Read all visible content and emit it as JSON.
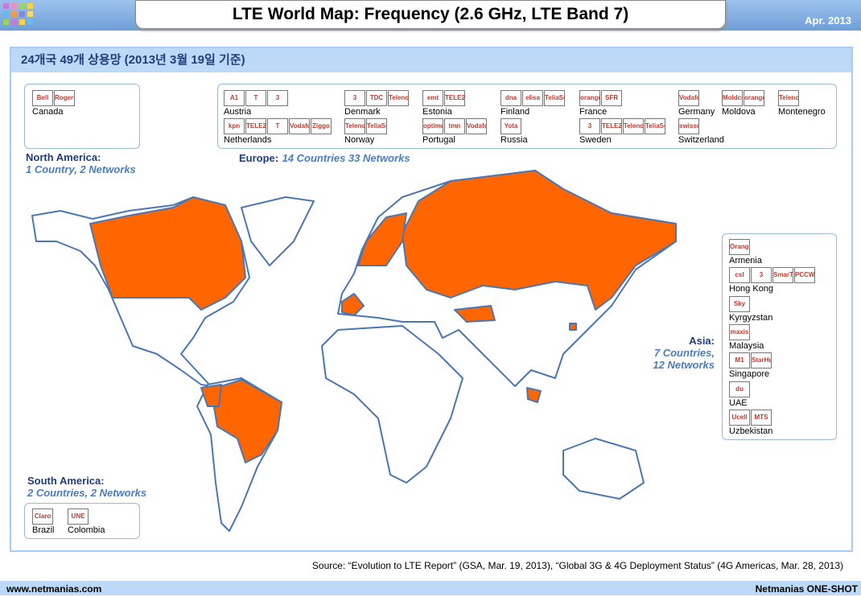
{
  "header": {
    "title": "LTE World Map: Frequency (2.6 GHz, LTE Band 7)",
    "date": "Apr. 2013"
  },
  "panel": {
    "heading": "24개국 49개 상용망 (2013년 3월 19일 기준)"
  },
  "regions": {
    "north_america": {
      "name": "North America:",
      "summary": "1 Country, 2 Networks",
      "countries": [
        {
          "name": "Canada",
          "logos": [
            "Bell",
            "Rogers"
          ]
        }
      ]
    },
    "europe": {
      "name": "Europe:",
      "summary": "14 Countries 33 Networks",
      "countries": [
        {
          "name": "Austria",
          "logos": [
            "A1",
            "T",
            "3"
          ]
        },
        {
          "name": "Denmark",
          "logos": [
            "3",
            "TDC",
            "Telenor"
          ]
        },
        {
          "name": "Estonia",
          "logos": [
            "emt",
            "TELE2"
          ]
        },
        {
          "name": "Finland",
          "logos": [
            "dna",
            "elisa",
            "TeliaSonera"
          ]
        },
        {
          "name": "France",
          "logos": [
            "orange",
            "SFR"
          ]
        },
        {
          "name": "Germany",
          "logos": [
            "Vodafone"
          ]
        },
        {
          "name": "Moldova",
          "logos": [
            "Moldcell",
            "orange"
          ]
        },
        {
          "name": "Montenegro",
          "logos": [
            "Telenor"
          ]
        },
        {
          "name": "Netherlands",
          "logos": [
            "kpn",
            "TELE2",
            "T",
            "Vodafone",
            "Ziggo"
          ]
        },
        {
          "name": "Norway",
          "logos": [
            "Telenor",
            "TeliaSonera"
          ]
        },
        {
          "name": "Portugal",
          "logos": [
            "optimus",
            "tmn",
            "Vodafone"
          ]
        },
        {
          "name": "Russia",
          "logos": [
            "Yota"
          ]
        },
        {
          "name": "Sweden",
          "logos": [
            "3",
            "TELE2",
            "Telenor",
            "TeliaSonera"
          ]
        },
        {
          "name": "Switzerland",
          "logos": [
            "swisscom"
          ]
        }
      ]
    },
    "asia": {
      "name": "Asia:",
      "summary": "7 Countries, 12 Networks",
      "countries": [
        {
          "name": "Armenia",
          "logos": [
            "Orange"
          ]
        },
        {
          "name": "Hong Kong",
          "logos": [
            "csl",
            "3",
            "SmarTone",
            "PCCW"
          ]
        },
        {
          "name": "Kyrgyzstan",
          "logos": [
            "Sky Mobile"
          ]
        },
        {
          "name": "Malaysia",
          "logos": [
            "maxis"
          ]
        },
        {
          "name": "Singapore",
          "logos": [
            "M1",
            "StarHub"
          ]
        },
        {
          "name": "UAE",
          "logos": [
            "du"
          ]
        },
        {
          "name": "Uzbekistan",
          "logos": [
            "Ucell",
            "MTS"
          ]
        }
      ]
    },
    "south_america": {
      "name": "South America:",
      "summary": "2 Countries, 2 Networks",
      "countries": [
        {
          "name": "Brazil",
          "logos": [
            "Claro"
          ]
        },
        {
          "name": "Colombia",
          "logos": [
            "UNE"
          ]
        }
      ]
    }
  },
  "source": "Source: “Evolution to LTE Report” (GSA, Mar. 19, 2013), “Global 3G & 4G Deployment Status” (4G Americas, Mar. 28, 2013)",
  "footer": {
    "left": "www.netmanias.com",
    "right": "Netmanias ONE-SHOT"
  }
}
